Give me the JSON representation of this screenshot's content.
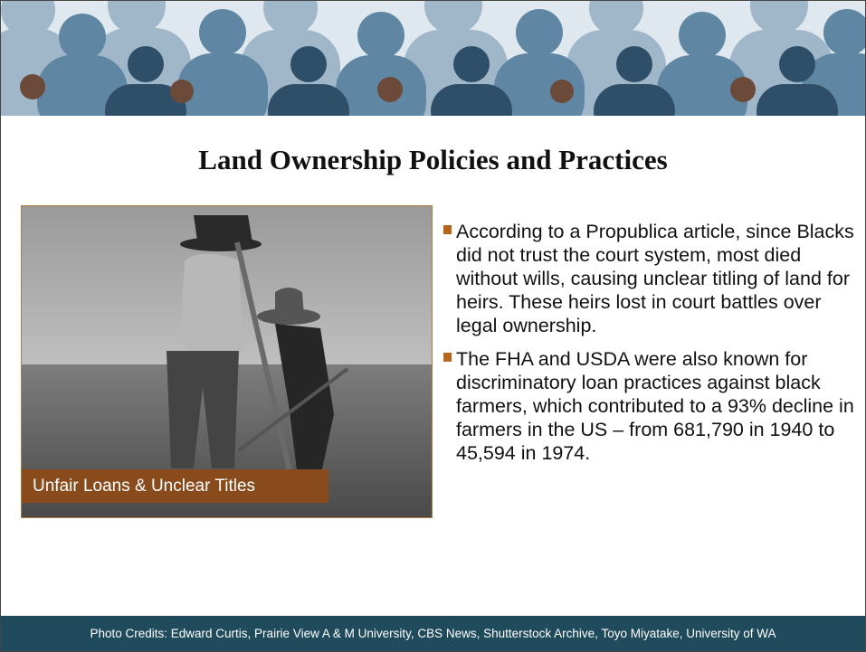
{
  "title": "Land Ownership Policies and Practices",
  "photo": {
    "caption": "Unfair Loans & Unclear Titles"
  },
  "bullets": [
    "According to a Propublica article, since Blacks did not trust the court system, most died without wills, causing unclear titling of land for heirs.  These heirs lost in court battles over legal ownership.",
    "The FHA and USDA were also known for discriminatory loan practices against black farmers, which contributed to a 93% decline in farmers in the US – from 681,790 in 1940 to 45,594 in 1974."
  ],
  "footer": "Photo Credits: Edward Curtis, Prairie View A & M University, CBS News, Shutterstock Archive, Toyo Miyatake, University of WA"
}
